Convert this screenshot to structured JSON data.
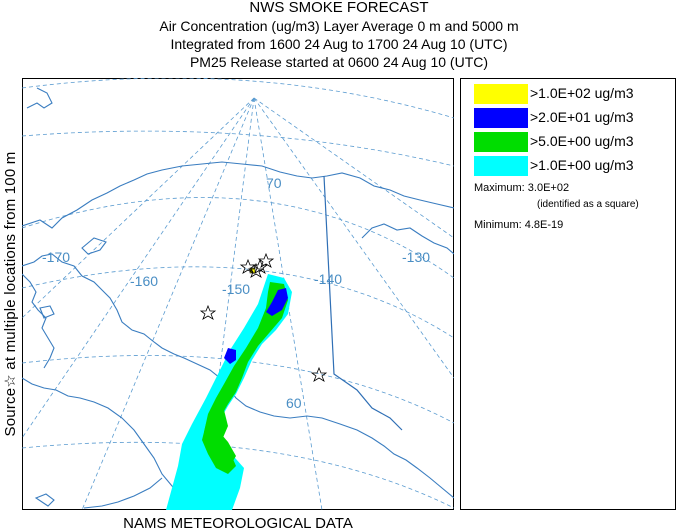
{
  "title": {
    "line1": "NWS SMOKE FORECAST",
    "line2": "Air Concentration (ug/m3) Layer Average    0 m and  5000 m",
    "line3": "Integrated from 1600 24 Aug to 1700 24 Aug 10 (UTC)",
    "line4": "PM25 Release started at 0600 24 Aug 10 (UTC)"
  },
  "side_label": "Source☆ at multiple locations  from  100 m",
  "footer": "NAMS METEOROLOGICAL DATA",
  "legend": {
    "items": [
      {
        "label": ">1.0E+02 ug/m3",
        "color": "#ffff00"
      },
      {
        "label": ">2.0E+01 ug/m3",
        "color": "#0000ff"
      },
      {
        "label": ">5.0E+00 ug/m3",
        "color": "#00dd00"
      },
      {
        "label": ">1.0E+00 ug/m3",
        "color": "#00ffff"
      }
    ],
    "maximum": "Maximum: 3.0E+02",
    "maximum_note": "(identified as a square)",
    "minimum": "Minimum: 4.8E-19"
  },
  "map": {
    "graticule_labels": {
      "lon_170": "-170",
      "lon_160": "-160",
      "lon_150": "-150",
      "lon_140": "-140",
      "lon_130": "-130",
      "lat_70": "70",
      "lat_60": "60"
    },
    "colors": {
      "coast": "#3a7dc0",
      "graticule": "#5a9bd0",
      "border": "#2f6fb5"
    }
  }
}
